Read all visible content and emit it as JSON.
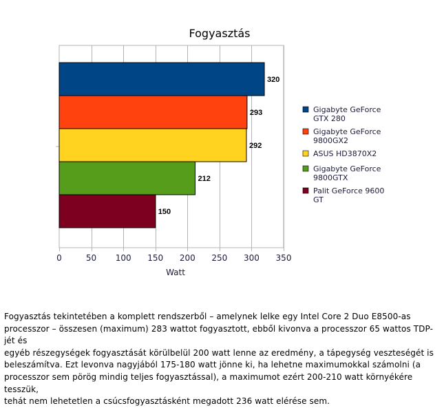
{
  "chart_data": {
    "type": "bar",
    "orientation": "horizontal",
    "title": "Fogyasztás",
    "xlabel": "Watt",
    "ylabel": "",
    "xlim": [
      0,
      350
    ],
    "ticks": [
      "0",
      "50",
      "100",
      "150",
      "200",
      "250",
      "300",
      "350"
    ],
    "tick_values": [
      0,
      50,
      100,
      150,
      200,
      250,
      300,
      350
    ],
    "grid": true,
    "legend_position": "right",
    "series": [
      {
        "name": "Gigabyte GeForce GTX 280",
        "legend_lines": [
          "Gigabyte GeForce",
          "GTX 280"
        ],
        "value": 320,
        "color": "#004586"
      },
      {
        "name": "Gigabyte GeForce 9800GX2",
        "legend_lines": [
          "Gigabyte GeForce",
          "9800GX2"
        ],
        "value": 293,
        "color": "#ff420e"
      },
      {
        "name": "ASUS HD3870X2",
        "legend_lines": [
          "ASUS HD3870X2"
        ],
        "value": 292,
        "color": "#ffd320"
      },
      {
        "name": "Gigabyte GeForce 9800GTX",
        "legend_lines": [
          "Gigabyte GeForce",
          "9800GTX"
        ],
        "value": 212,
        "color": "#579d1c"
      },
      {
        "name": "Palit GeForce 9600 GT",
        "legend_lines": [
          "Palit GeForce 9600",
          "GT"
        ],
        "value": 150,
        "color": "#7e0021"
      }
    ]
  },
  "article": {
    "lines": [
      "Fogyasztás tekintetében a komplett rendszerből – amelynek lelke egy Intel Core 2 Duo E8500-as",
      "processzor – összesen (maximum) 283 wattot fogyasztott, ebből kivonva a processzor 65 wattos TDP-jét és",
      "egyéb részegységek fogyasztását körülbelül 200 watt lenne az eredmény, a tápegység veszteségét is",
      "beleszámítva. Ezt levonva nagyjából 175-180 watt jönne ki, ha lehetne maximumokkal számolni (a",
      "processzor sem pörög mindig teljes fogyasztással), a maximumot ezért 200-210 watt környékére tesszük,",
      "tehát nem lehetetlen a csúcsfogyasztásként megadott 236 watt elérése sem."
    ]
  }
}
